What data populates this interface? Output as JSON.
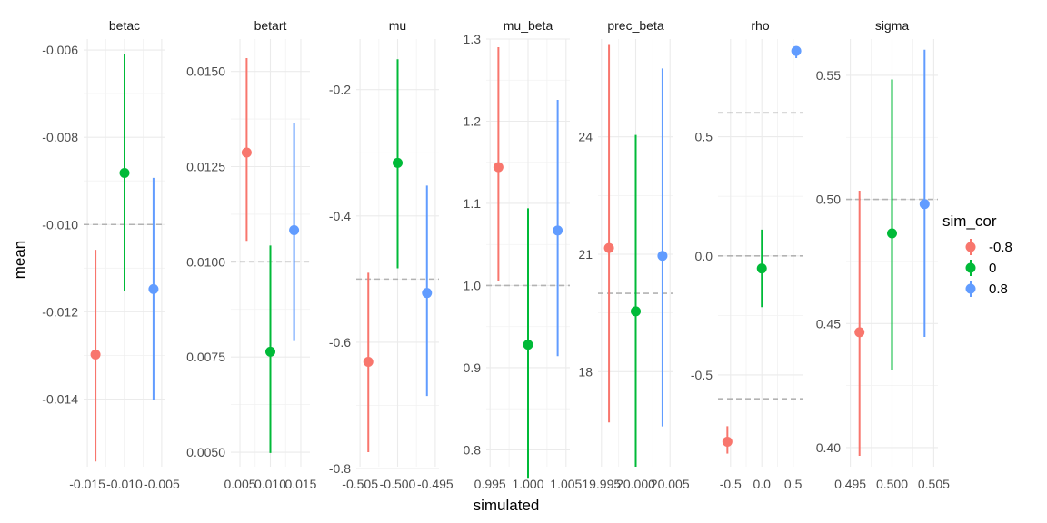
{
  "chart_data": {
    "type": "scatter",
    "xlabel": "simulated",
    "ylabel": "mean",
    "grid": true,
    "legend": {
      "title": "sim_cor",
      "position": "right",
      "entries": [
        {
          "label": "-0.8",
          "color": "#F8766D"
        },
        {
          "label": "0",
          "color": "#00BA38"
        },
        {
          "label": "0.8",
          "color": "#619CFF"
        }
      ]
    },
    "panels": [
      {
        "name": "betac",
        "xlim": [
          -0.0155,
          -0.0045
        ],
        "ylim": [
          -0.01555,
          -0.00575
        ],
        "xticks": [
          -0.015,
          -0.01,
          -0.005
        ],
        "xtick_labels": [
          "-0.015",
          "-0.010",
          "-0.005"
        ],
        "yticks": [
          -0.014,
          -0.012,
          -0.01,
          -0.008,
          -0.006
        ],
        "ytick_labels": [
          "-0.014",
          "-0.012",
          "-0.010",
          "-0.008",
          "-0.006"
        ],
        "reference": -0.01,
        "series": [
          {
            "name": "-0.8",
            "x": -0.0139,
            "y": -0.01298,
            "lo": -0.01543,
            "hi": -0.01058
          },
          {
            "name": "0",
            "x": -0.01,
            "y": -0.00882,
            "lo": -0.01152,
            "hi": -0.0061
          },
          {
            "name": "0.8",
            "x": -0.0061,
            "y": -0.01148,
            "lo": -0.01403,
            "hi": -0.00893
          }
        ]
      },
      {
        "name": "betart",
        "xlim": [
          0.0035,
          0.0165
        ],
        "ylim": [
          0.00462,
          0.01585
        ],
        "xticks": [
          0.005,
          0.01,
          0.015
        ],
        "xtick_labels": [
          "0.005",
          "0.010",
          "0.015"
        ],
        "yticks": [
          0.005,
          0.0075,
          0.01,
          0.0125,
          0.015
        ],
        "ytick_labels": [
          "0.0050",
          "0.0075",
          "0.0100",
          "0.0125",
          "0.0150"
        ],
        "reference": 0.01,
        "series": [
          {
            "name": "-0.8",
            "x": 0.0061,
            "y": 0.01287,
            "lo": 0.01055,
            "hi": 0.01535
          },
          {
            "name": "0",
            "x": 0.01,
            "y": 0.00764,
            "lo": 0.00498,
            "hi": 0.01043
          },
          {
            "name": "0.8",
            "x": 0.0139,
            "y": 0.01083,
            "lo": 0.00792,
            "hi": 0.01365
          }
        ]
      },
      {
        "name": "mu",
        "xlim": [
          -0.5055,
          -0.4945
        ],
        "ylim": [
          -0.797,
          -0.12
        ],
        "xticks": [
          -0.505,
          -0.5,
          -0.495
        ],
        "xtick_labels": [
          "-0.505",
          "-0.500",
          "-0.495"
        ],
        "yticks": [
          -0.8,
          -0.6,
          -0.4,
          -0.2
        ],
        "ytick_labels": [
          "-0.8",
          "-0.6",
          "-0.4",
          "-0.2"
        ],
        "reference": -0.5,
        "series": [
          {
            "name": "-0.8",
            "x": -0.5039,
            "y": -0.631,
            "lo": -0.774,
            "hi": -0.49
          },
          {
            "name": "0",
            "x": -0.5,
            "y": -0.316,
            "lo": -0.483,
            "hi": -0.152
          },
          {
            "name": "0.8",
            "x": -0.4961,
            "y": -0.522,
            "lo": -0.685,
            "hi": -0.352
          }
        ]
      },
      {
        "name": "mu_beta",
        "xlim": [
          0.9945,
          1.0055
        ],
        "ylim": [
          0.7795,
          1.3
        ],
        "xticks": [
          0.995,
          1.0,
          1.005
        ],
        "xtick_labels": [
          "0.995",
          "1.000",
          "1.005"
        ],
        "yticks": [
          0.8,
          0.9,
          1.0,
          1.1,
          1.2,
          1.3
        ],
        "ytick_labels": [
          "0.8",
          "0.9",
          "1.0",
          "1.1",
          "1.2",
          "1.3"
        ],
        "reference": 1.0,
        "series": [
          {
            "name": "-0.8",
            "x": 0.9961,
            "y": 1.144,
            "lo": 1.006,
            "hi": 1.29
          },
          {
            "name": "0",
            "x": 1.0,
            "y": 0.928,
            "lo": 0.766,
            "hi": 1.094
          },
          {
            "name": "0.8",
            "x": 1.0039,
            "y": 1.067,
            "lo": 0.914,
            "hi": 1.226
          }
        ]
      },
      {
        "name": "prec_beta",
        "xlim": [
          19.9945,
          20.0055
        ],
        "ylim": [
          15.57,
          26.5
        ],
        "xticks": [
          19.995,
          20.0,
          20.005
        ],
        "xtick_labels": [
          "19.995",
          "20.000",
          "20.005"
        ],
        "yticks": [
          18,
          21,
          24
        ],
        "ytick_labels": [
          "18",
          "21",
          "24"
        ],
        "reference": 20.0,
        "series": [
          {
            "name": "-0.8",
            "x": 19.9961,
            "y": 21.16,
            "lo": 16.7,
            "hi": 26.35
          },
          {
            "name": "0",
            "x": 20.0,
            "y": 19.54,
            "lo": 15.57,
            "hi": 24.05
          },
          {
            "name": "0.8",
            "x": 20.0039,
            "y": 20.96,
            "lo": 16.6,
            "hi": 25.75
          }
        ]
      },
      {
        "name": "rho",
        "xlim": [
          -0.7,
          0.65
        ],
        "ylim": [
          -0.885,
          0.91
        ],
        "xticks": [
          -0.5,
          0.0,
          0.5
        ],
        "xtick_labels": [
          "-0.5",
          "0.0",
          "0.5"
        ],
        "yticks": [
          -0.5,
          0.0,
          0.5
        ],
        "ytick_labels": [
          "-0.5",
          "0.0",
          "0.5"
        ],
        "references": [
          -0.6,
          0.0,
          0.6
        ],
        "series": [
          {
            "name": "-0.8",
            "x": -0.55,
            "y": -0.78,
            "lo": -0.83,
            "hi": -0.715
          },
          {
            "name": "0",
            "x": 0.0,
            "y": -0.053,
            "lo": -0.215,
            "hi": 0.11
          },
          {
            "name": "0.8",
            "x": 0.55,
            "y": 0.86,
            "lo": 0.83,
            "hi": 0.88
          }
        ]
      },
      {
        "name": "sigma",
        "xlim": [
          0.4945,
          0.5055
        ],
        "ylim": [
          0.3923,
          0.5646
        ],
        "xticks": [
          0.495,
          0.5,
          0.505
        ],
        "xtick_labels": [
          "0.495",
          "0.500",
          "0.505"
        ],
        "yticks": [
          0.4,
          0.45,
          0.5,
          0.55
        ],
        "ytick_labels": [
          "0.40",
          "0.45",
          "0.50",
          "0.55"
        ],
        "reference": 0.5,
        "series": [
          {
            "name": "-0.8",
            "x": 0.4961,
            "y": 0.4465,
            "lo": 0.3967,
            "hi": 0.5035
          },
          {
            "name": "0",
            "x": 0.5,
            "y": 0.4863,
            "lo": 0.4312,
            "hi": 0.5483
          },
          {
            "name": "0.8",
            "x": 0.5039,
            "y": 0.4981,
            "lo": 0.4446,
            "hi": 0.5603
          }
        ]
      }
    ]
  }
}
